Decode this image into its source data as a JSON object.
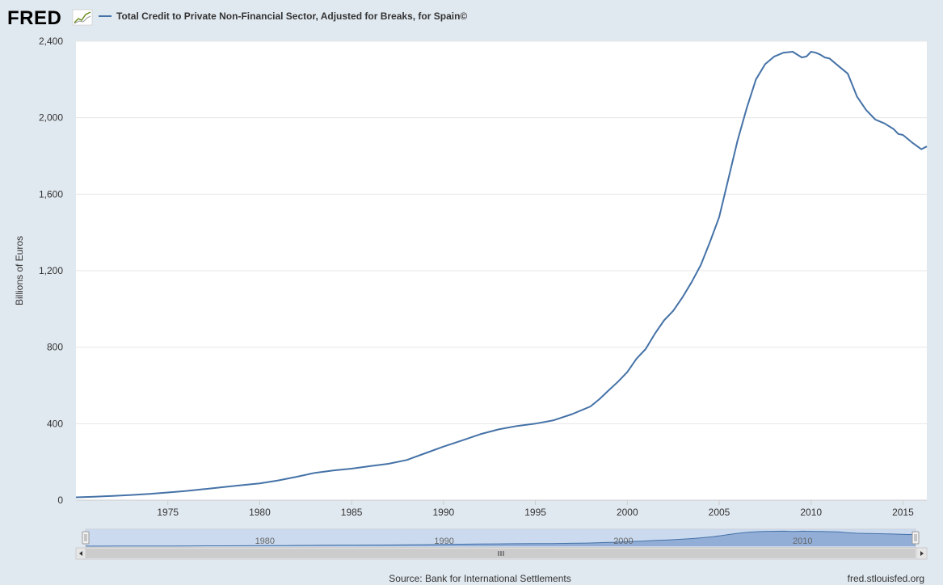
{
  "header": {
    "logo_text": "FRED",
    "series_title": "Total Credit to Private Non-Financial Sector, Adjusted for Breaks, for Spain©"
  },
  "footer": {
    "source": "Source: Bank for International Settlements",
    "site": "fred.stlouisfed.org"
  },
  "colors": {
    "series": "#4572a7",
    "background": "#e1e9f0",
    "plot_background": "#ffffff",
    "navigator_fill": "#c5d6ec"
  },
  "chart_data": {
    "type": "line",
    "ylabel": "Billions of Euros",
    "xlabel": "",
    "x_range": [
      1970.0,
      2016.3
    ],
    "ylim": [
      0,
      2400
    ],
    "y_ticks": [
      0,
      400,
      800,
      1200,
      1600,
      2000,
      2400
    ],
    "y_tick_labels": [
      "0",
      "400",
      "800",
      "1,200",
      "1,600",
      "2,000",
      "2,400"
    ],
    "x_ticks": [
      1975,
      1980,
      1985,
      1990,
      1995,
      2000,
      2005,
      2010,
      2015
    ],
    "x_tick_labels": [
      "1975",
      "1980",
      "1985",
      "1990",
      "1995",
      "2000",
      "2005",
      "2010",
      "2015"
    ],
    "grid": true,
    "legend": "top-left",
    "navigator_ticks": [
      "1980",
      "1990",
      "2000",
      "2010"
    ],
    "series": [
      {
        "name": "Total Credit to Private Non-Financial Sector, Adjusted for Breaks, for Spain©",
        "x": [
          1970.0,
          1971.0,
          1972.0,
          1973.0,
          1974.0,
          1975.0,
          1976.0,
          1977.0,
          1978.0,
          1979.0,
          1980.0,
          1981.0,
          1982.0,
          1983.0,
          1984.0,
          1985.0,
          1986.0,
          1987.0,
          1988.0,
          1989.0,
          1990.0,
          1991.0,
          1992.0,
          1993.0,
          1994.0,
          1995.0,
          1996.0,
          1997.0,
          1998.0,
          1998.5,
          1999.0,
          1999.5,
          2000.0,
          2000.5,
          2001.0,
          2001.5,
          2002.0,
          2002.5,
          2003.0,
          2003.5,
          2004.0,
          2004.5,
          2005.0,
          2005.5,
          2006.0,
          2006.5,
          2007.0,
          2007.5,
          2008.0,
          2008.5,
          2009.0,
          2009.25,
          2009.5,
          2009.75,
          2010.0,
          2010.25,
          2010.5,
          2010.75,
          2011.0,
          2011.5,
          2012.0,
          2012.25,
          2012.5,
          2013.0,
          2013.5,
          2014.0,
          2014.5,
          2014.75,
          2015.0,
          2015.5,
          2016.0,
          2016.3
        ],
        "y": [
          15,
          18,
          22,
          27,
          33,
          40,
          48,
          58,
          68,
          78,
          88,
          103,
          122,
          143,
          155,
          165,
          178,
          190,
          210,
          245,
          280,
          312,
          345,
          370,
          388,
          400,
          418,
          450,
          490,
          530,
          575,
          620,
          670,
          740,
          790,
          870,
          940,
          990,
          1060,
          1140,
          1230,
          1350,
          1480,
          1680,
          1880,
          2050,
          2200,
          2280,
          2320,
          2340,
          2345,
          2330,
          2315,
          2320,
          2345,
          2340,
          2330,
          2315,
          2310,
          2270,
          2230,
          2170,
          2110,
          2040,
          1990,
          1970,
          1940,
          1915,
          1910,
          1870,
          1835,
          1850
        ]
      }
    ]
  }
}
